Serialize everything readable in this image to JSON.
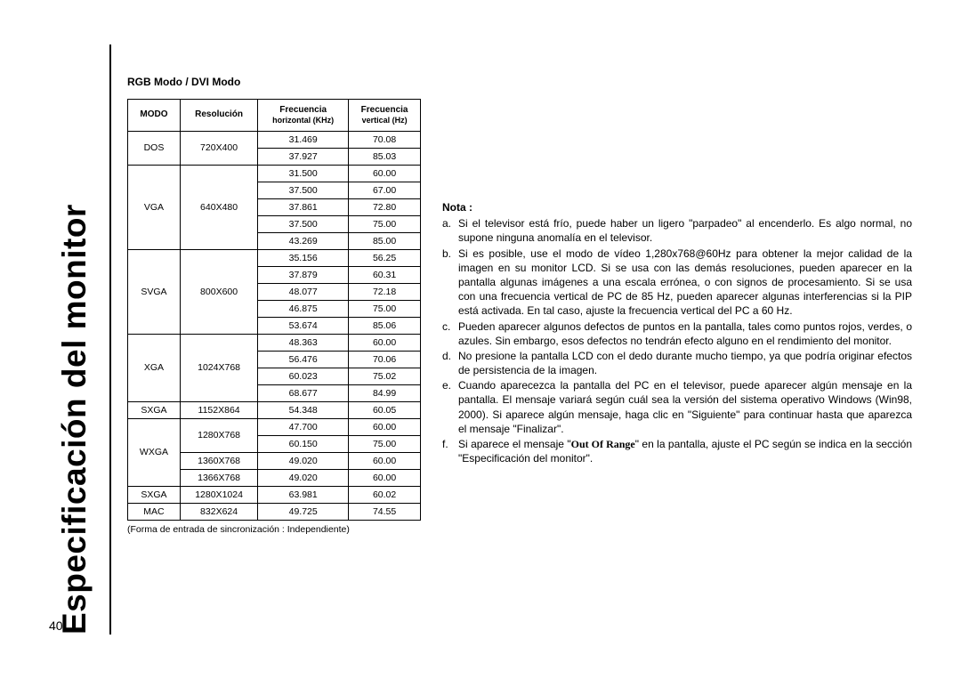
{
  "page_number": "40",
  "vert_title": "Especificación del monitor",
  "table_heading": "RGB Modo / DVI Modo",
  "columns": {
    "modo": "MODO",
    "res": "Resolución",
    "fh": "Frecuencia",
    "fh_sub": "horizontal (KHz)",
    "fv": "Frecuencia",
    "fv_sub": "vertical (Hz)"
  },
  "groups": [
    {
      "mode": "DOS",
      "res": "720X400",
      "rows": [
        [
          "31.469",
          "70.08"
        ],
        [
          "37.927",
          "85.03"
        ]
      ]
    },
    {
      "mode": "VGA",
      "res": "640X480",
      "rows": [
        [
          "31.500",
          "60.00"
        ],
        [
          "37.500",
          "67.00"
        ],
        [
          "37.861",
          "72.80"
        ],
        [
          "37.500",
          "75.00"
        ],
        [
          "43.269",
          "85.00"
        ]
      ]
    },
    {
      "mode": "SVGA",
      "res": "800X600",
      "rows": [
        [
          "35.156",
          "56.25"
        ],
        [
          "37.879",
          "60.31"
        ],
        [
          "48.077",
          "72.18"
        ],
        [
          "46.875",
          "75.00"
        ],
        [
          "53.674",
          "85.06"
        ]
      ]
    },
    {
      "mode": "XGA",
      "res": "1024X768",
      "rows": [
        [
          "48.363",
          "60.00"
        ],
        [
          "56.476",
          "70.06"
        ],
        [
          "60.023",
          "75.02"
        ],
        [
          "68.677",
          "84.99"
        ]
      ]
    },
    {
      "mode": "SXGA",
      "res": "1152X864",
      "rows": [
        [
          "54.348",
          "60.05"
        ]
      ]
    },
    {
      "mode": "WXGA",
      "subgroups": [
        {
          "res": "1280X768",
          "rows": [
            [
              "47.700",
              "60.00"
            ],
            [
              "60.150",
              "75.00"
            ]
          ]
        },
        {
          "res": "1360X768",
          "rows": [
            [
              "49.020",
              "60.00"
            ]
          ]
        },
        {
          "res": "1366X768",
          "rows": [
            [
              "49.020",
              "60.00"
            ]
          ]
        }
      ]
    },
    {
      "mode": "SXGA",
      "res": "1280X1024",
      "rows": [
        [
          "63.981",
          "60.02"
        ]
      ]
    },
    {
      "mode": "MAC",
      "res": "832X624",
      "rows": [
        [
          "49.725",
          "74.55"
        ]
      ]
    }
  ],
  "table_footnote": "(Forma de entrada de sincronización : Independiente)",
  "nota_heading": "Nota :",
  "notes": [
    {
      "l": "a.",
      "t": "Si el televisor está frío, puede haber un ligero \"parpadeo\" al encenderlo. Es algo normal, no supone ninguna anomalía en el televisor."
    },
    {
      "l": "b.",
      "t": "Si es posible, use el modo de vídeo 1,280x768@60Hz para obtener la mejor calidad de la imagen en su monitor LCD. Si se usa con las demás resoluciones, pueden aparecer en la pantalla algunas imágenes a una escala errónea, o con signos de procesamiento. Si se usa con una frecuencia vertical de PC de 85 Hz, pueden aparecer algunas interferencias si la PIP está activada. En tal caso, ajuste la frecuencia vertical del PC a 60 Hz."
    },
    {
      "l": "c.",
      "t": "Pueden aparecer algunos defectos de puntos en la pantalla, tales como puntos rojos, verdes, o azules. Sin embargo, esos defectos no tendrán efecto alguno en el rendimiento del monitor."
    },
    {
      "l": "d.",
      "t": "No presione la pantalla LCD con el dedo durante mucho tiempo, ya que podría originar efectos de persistencia de la imagen."
    },
    {
      "l": "e.",
      "t": "Cuando aparecezca la pantalla del PC en el televisor, puede aparecer algún mensaje en la pantalla. El mensaje variará según cuál sea la versión del sistema operativo Windows (Win98, 2000). Si aparece algún mensaje, haga clic en \"Siguiente\" para continuar hasta que aparezca el mensaje \"Finalizar\"."
    },
    {
      "l": "f.",
      "t_pre": "Si aparece el mensaje \"",
      "oor": "Out Of Range",
      "t_post": "\" en la pantalla, ajuste el PC según se indica en la sección \"Especificación del monitor\"."
    }
  ]
}
